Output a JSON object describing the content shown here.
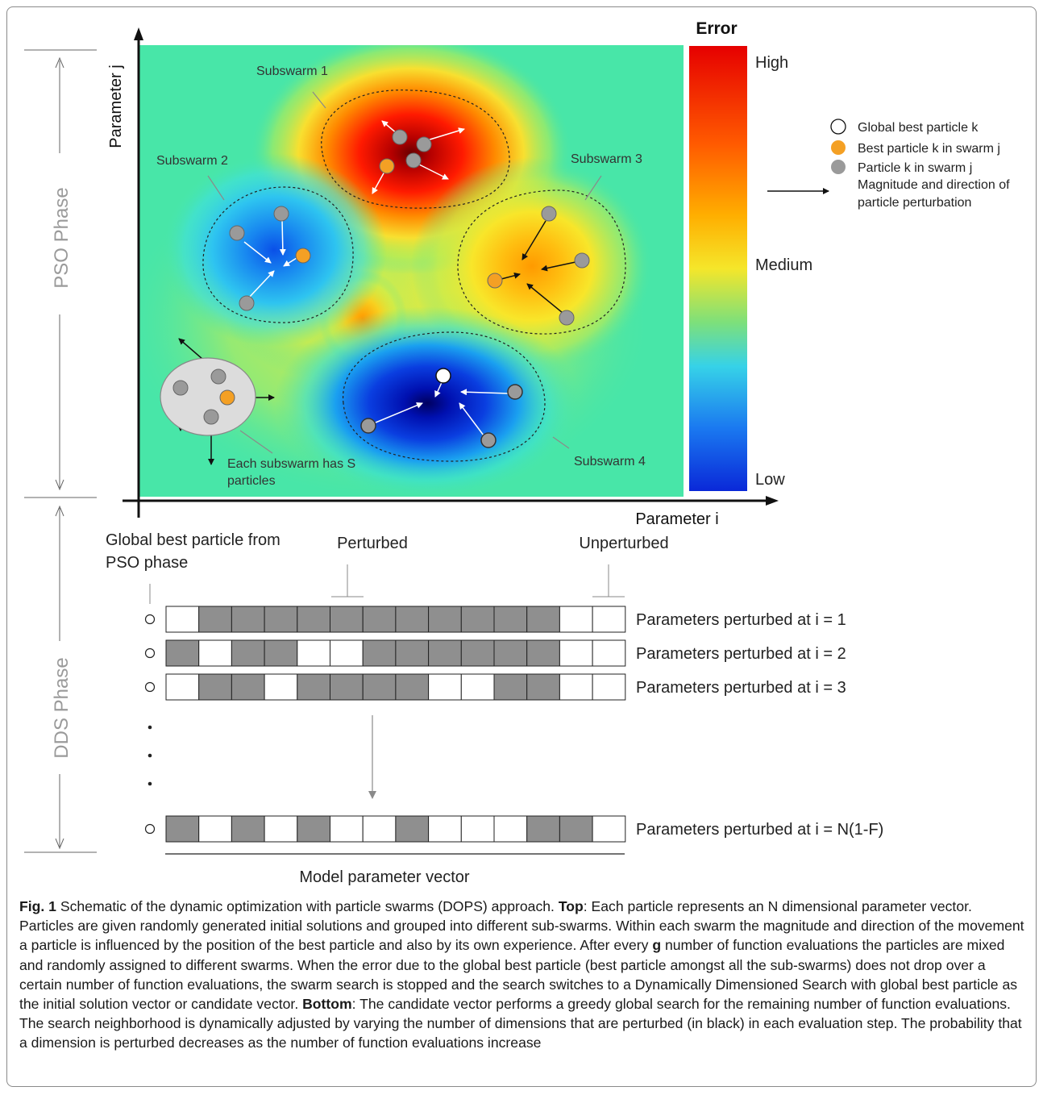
{
  "figure": {
    "phase_labels": {
      "pso": "PSO Phase",
      "dds": "DDS Phase"
    },
    "axes": {
      "y_label": "Parameter j",
      "x_label": "Parameter i"
    },
    "colorbar": {
      "title": "Error",
      "high": "High",
      "medium": "Medium",
      "low": "Low",
      "colors": [
        "#e60000",
        "#ff7a00",
        "#f5e02a",
        "#36d2e8",
        "#0a28d8"
      ]
    },
    "subswarm_labels": [
      "Subswarm 1",
      "Subswarm 2",
      "Subswarm 3",
      "Subswarm 4"
    ],
    "subswarm_note": [
      "Each subswarm has S",
      "particles"
    ],
    "legend": {
      "global_best": "Global best particle k",
      "best_in_swarm": "Best particle k in swarm j",
      "particle": "Particle k in swarm j",
      "arrow": [
        "Magnitude and direction of",
        "particle perturbation"
      ],
      "colors": {
        "best": "#f4a024",
        "particle": "#9a9a9a"
      }
    },
    "dds": {
      "global_best_label": [
        "Global best particle from",
        "PSO phase"
      ],
      "perturbed_label": "Perturbed",
      "unperturbed_label": "Unperturbed",
      "rows": [
        {
          "label": "Parameters perturbed at i = 1",
          "cells": [
            0,
            1,
            1,
            1,
            1,
            1,
            1,
            1,
            1,
            1,
            1,
            1,
            0,
            0
          ]
        },
        {
          "label": "Parameters perturbed at i = 2",
          "cells": [
            1,
            0,
            1,
            1,
            0,
            0,
            1,
            1,
            1,
            1,
            1,
            1,
            0,
            0
          ]
        },
        {
          "label": "Parameters perturbed at i = 3",
          "cells": [
            0,
            1,
            1,
            0,
            1,
            1,
            1,
            1,
            0,
            0,
            1,
            1,
            0,
            0
          ]
        },
        {
          "label": "Parameters perturbed at i = N(1-F)",
          "cells": [
            1,
            0,
            1,
            0,
            1,
            0,
            0,
            1,
            0,
            0,
            0,
            1,
            1,
            0
          ]
        }
      ],
      "vector_label": "Model parameter vector",
      "colors": {
        "perturbed": "#8f8f8f",
        "unperturbed": "#ffffff"
      }
    }
  },
  "caption": {
    "fig_label": "Fig. 1",
    "part1": " Schematic of the dynamic optimization with particle swarms (DOPS) approach. ",
    "top_label": "Top",
    "part2": ": Each particle represents an N dimensional parameter vector. Particles are given randomly generated initial solutions and grouped into different sub-swarms. Within each swarm the magnitude and direction of the movement a particle is influenced by the position of the best particle and also by its own experience. After every ",
    "g_label": "g",
    "part3": " number of function evaluations the particles are mixed and randomly assigned to different swarms. When the error due to the global best particle (best particle amongst all the sub-swarms) does not drop over a certain number of function evaluations, the swarm search is stopped and the search switches to a Dynamically Dimensioned Search with global best particle as the initial solution vector or candidate vector. ",
    "bottom_label": "Bottom",
    "part4": ": The candidate vector performs a greedy global search for the remaining number of function evaluations. The search neighborhood is dynamically adjusted by varying the number of dimensions that are perturbed (in black) in each evaluation step. The probability that a dimension is perturbed decreases as the number of function evaluations increase"
  }
}
